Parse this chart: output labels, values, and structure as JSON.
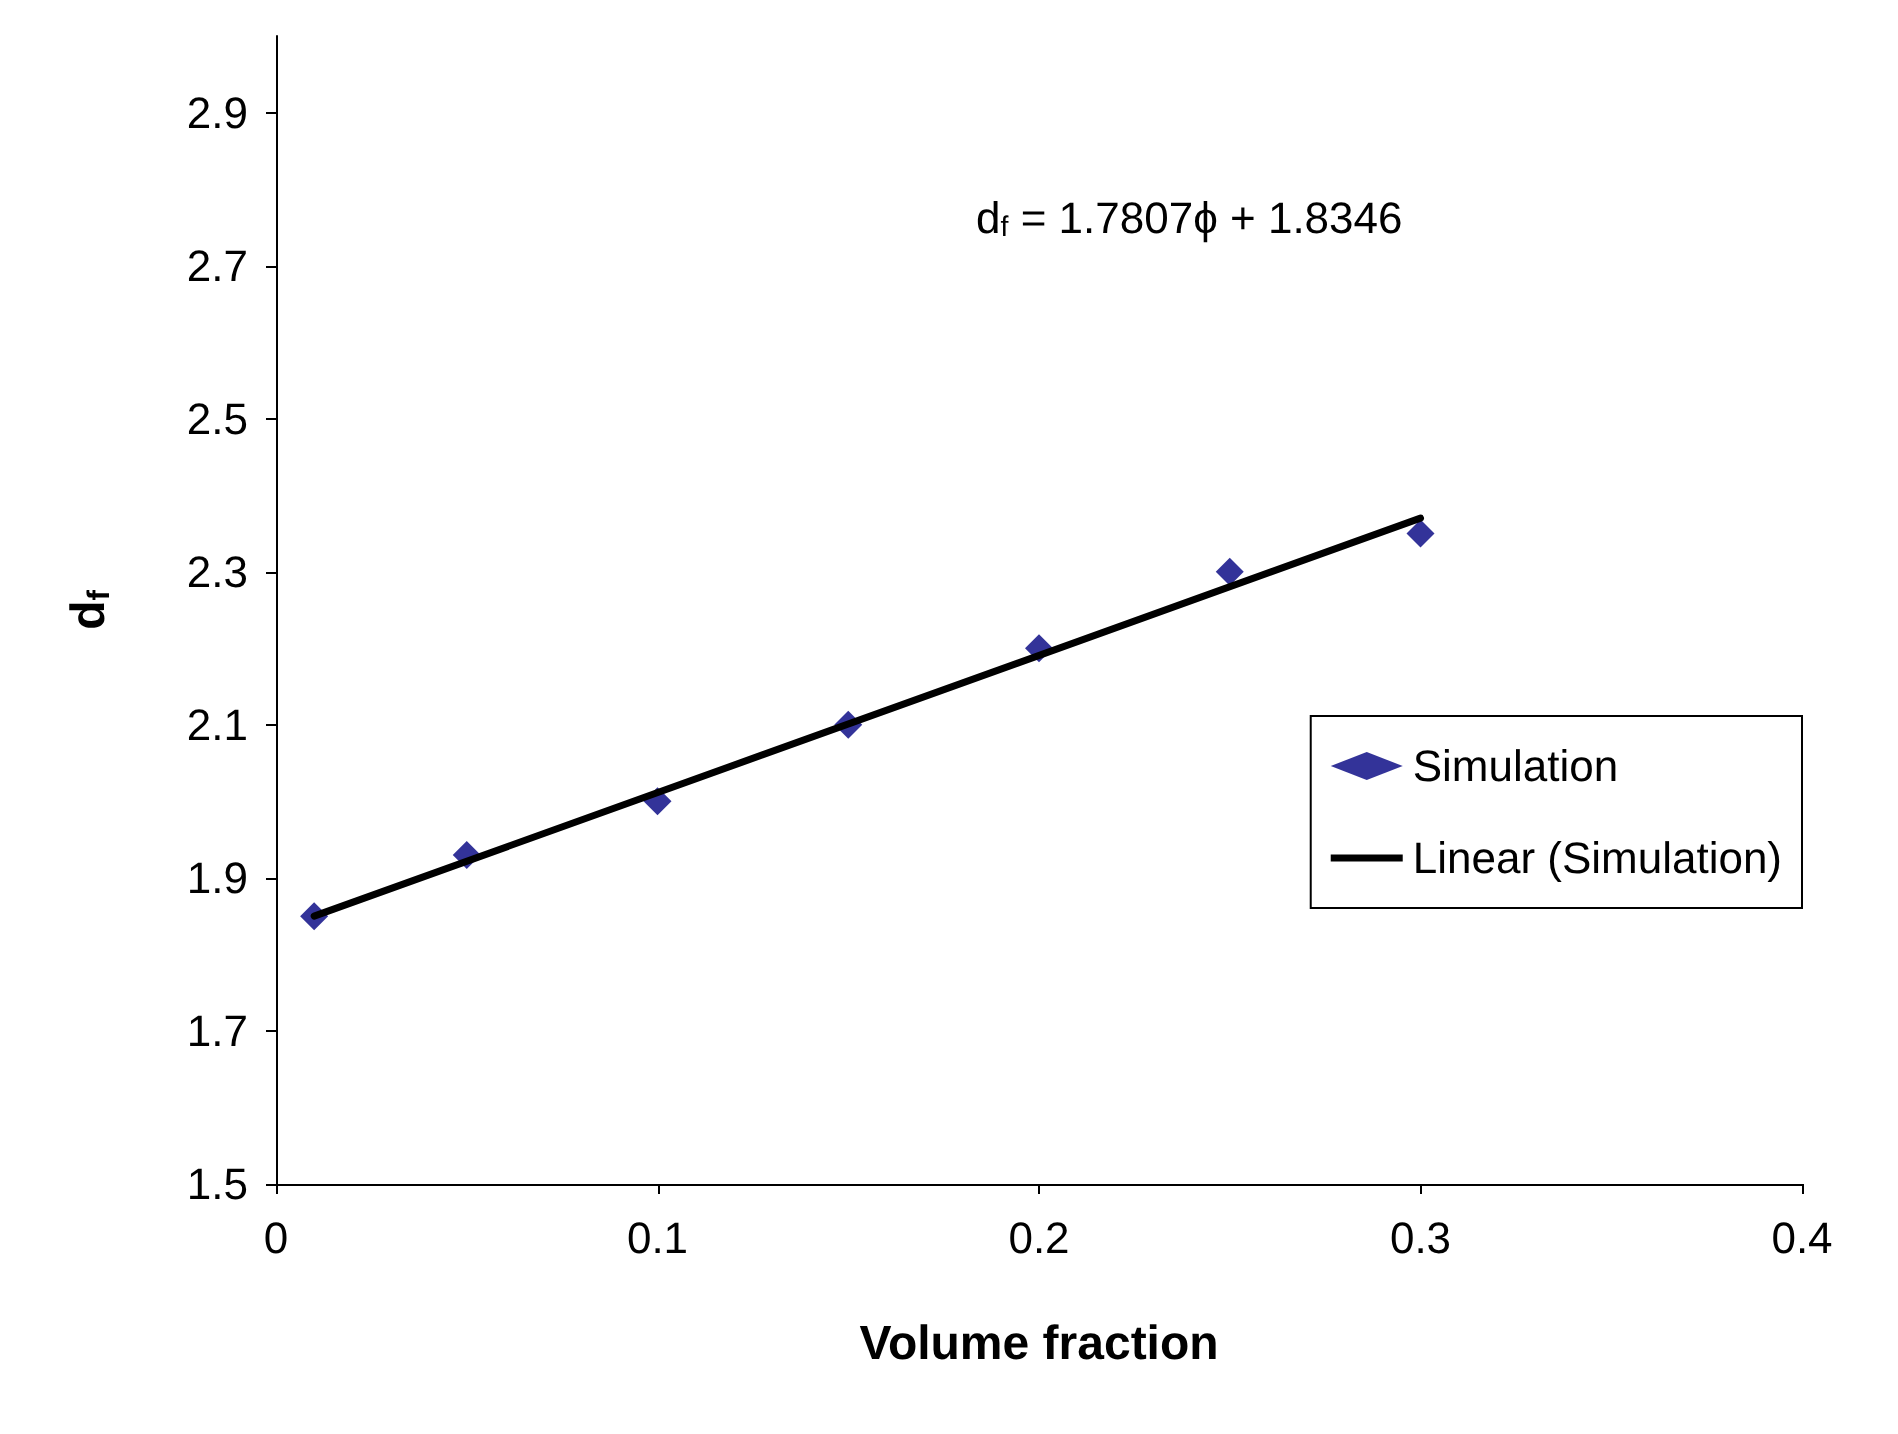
{
  "chart_data": {
    "type": "scatter",
    "xlabel": "Volume fraction",
    "ylabel": "d$_{f}$",
    "annotations": [
      "d$_{f}$ = 1.7807ϕ + 1.8346"
    ],
    "xlim": [
      0,
      0.4
    ],
    "xticks": [
      0,
      0.1,
      0.2,
      0.3,
      0.4
    ],
    "ylim": [
      1.5,
      3.0
    ],
    "yticks": [
      1.5,
      1.7,
      1.9,
      2.1,
      2.3,
      2.5,
      2.7,
      2.9
    ],
    "grid": false,
    "legend": "right",
    "series": [
      {
        "name": "Simulation",
        "color": "#000080",
        "marker": "diamond",
        "x": [
          0.01,
          0.05,
          0.1,
          0.15,
          0.2,
          0.25,
          0.3
        ],
        "values": [
          1.85,
          1.93,
          2.0,
          2.1,
          2.2,
          2.3,
          2.35
        ]
      },
      {
        "name": "Linear (Simulation)",
        "type": "line",
        "color": "#000000",
        "marker": "none",
        "line_style": "solid",
        "x": [
          0.01,
          0.3
        ],
        "values": [
          1.85,
          2.37
        ]
      }
    ]
  }
}
